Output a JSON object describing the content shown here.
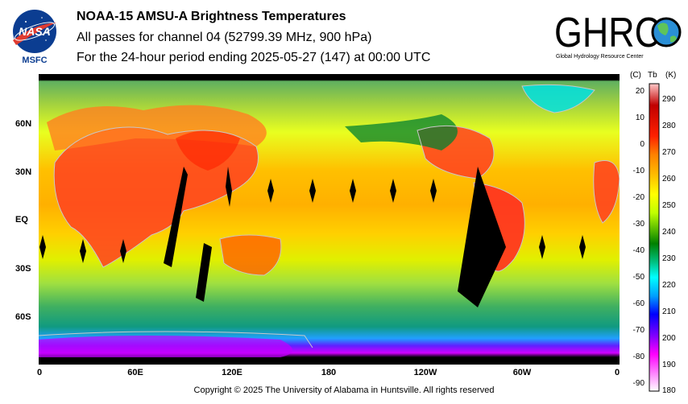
{
  "logos": {
    "nasa_text": "NASA",
    "msfc_text": "MSFC",
    "ghrc_text": "GHRC",
    "ghrc_tagline": "Global Hydrology Resource Center"
  },
  "header": {
    "title": "NOAA-15 AMSU-A Brightness Temperatures",
    "subtitle1": "All passes for channel 04 (52799.39 MHz, 900 hPa)",
    "subtitle2": "For the 24-hour period ending 2025-05-27 (147) at 00:00 UTC"
  },
  "map": {
    "lat_labels": [
      "60N",
      "30N",
      "EQ",
      "30S",
      "60S"
    ],
    "lon_labels": [
      "0",
      "60E",
      "120E",
      "180",
      "120W",
      "60W",
      "0"
    ]
  },
  "colorbar": {
    "unit_c": "(C)",
    "unit_tb": "Tb",
    "unit_k": "(K)",
    "celsius_ticks": [
      "20",
      "10",
      "0",
      "-10",
      "-20",
      "-30",
      "-40",
      "-50",
      "-60",
      "-70",
      "-80",
      "-90"
    ],
    "kelvin_ticks": [
      "290",
      "280",
      "270",
      "260",
      "250",
      "240",
      "230",
      "220",
      "210",
      "200",
      "190",
      "180"
    ],
    "colors": [
      "#ffffff",
      "#ff00ff",
      "#8000ff",
      "#0000ff",
      "#00a0ff",
      "#00ffff",
      "#00c080",
      "#008000",
      "#60c000",
      "#c0ff00",
      "#ffff00",
      "#ffc000",
      "#ff8000",
      "#ff2000",
      "#c00000",
      "#ffc8c8"
    ]
  },
  "footer": {
    "copyright": "Copyright © 2025 The University of Alabama in Huntsville.  All rights reserved"
  }
}
